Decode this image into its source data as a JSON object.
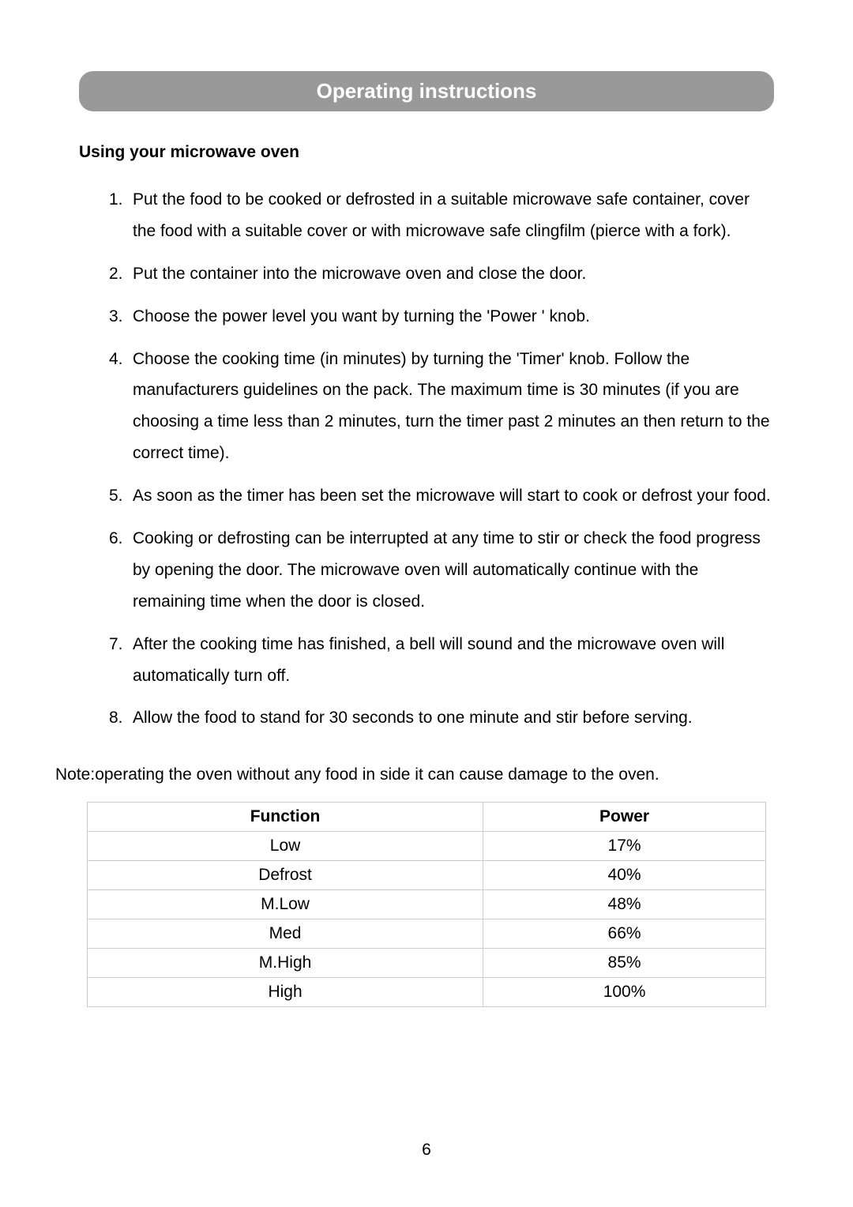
{
  "header": {
    "title": "Operating instructions"
  },
  "section_heading": "Using your microwave oven",
  "steps": [
    "Put the food to be cooked or defrosted in a suitable microwave safe container, cover the food with a suitable cover or with microwave safe clingfilm (pierce with a fork).",
    "Put the container into the microwave oven and close the door.",
    "Choose the power level you want by turning the 'Power ' knob.",
    "Choose the cooking time (in minutes) by turning the 'Timer' knob. Follow the manufacturers guidelines on the pack. The maximum time is 30 minutes (if you are choosing a time less than 2 minutes, turn the timer past 2 minutes an then return to the correct time).",
    " As soon as the timer has been set the microwave will start to cook or defrost your food.",
    "Cooking or defrosting can be interrupted at any time to stir or check the food progress by opening the door. The microwave oven will automatically continue with the remaining time when the door is closed.",
    "After the cooking time has finished, a bell will sound and the microwave oven will automatically turn off.",
    "Allow the food to stand for 30 seconds to one minute and stir before serving."
  ],
  "note": "Note:operating the oven without any food in side it can cause damage to the oven.",
  "table": {
    "headers": [
      "Function",
      "Power"
    ],
    "rows": [
      [
        "Low",
        "17%"
      ],
      [
        "Defrost",
        "40%"
      ],
      [
        "M.Low",
        "48%"
      ],
      [
        "Med",
        "66%"
      ],
      [
        "M.High",
        "85%"
      ],
      [
        "High",
        "100%"
      ]
    ]
  },
  "page_number": "6",
  "styling": {
    "banner_bg": "#999999",
    "banner_text_color": "#ffffff",
    "body_text_color": "#000000",
    "table_border_color": "#cccccc",
    "body_font_size": 21,
    "header_font_size": 26
  }
}
